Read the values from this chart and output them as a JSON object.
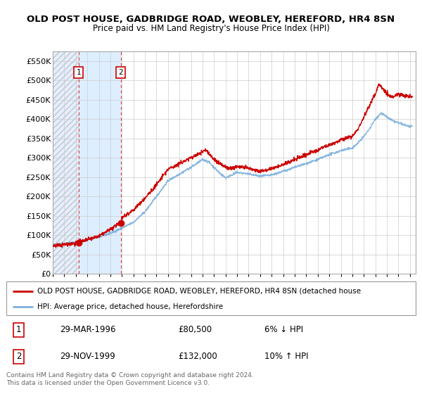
{
  "title": "OLD POST HOUSE, GADBRIDGE ROAD, WEOBLEY, HEREFORD, HR4 8SN",
  "subtitle": "Price paid vs. HM Land Registry's House Price Index (HPI)",
  "ylim": [
    0,
    575000
  ],
  "yticks": [
    0,
    50000,
    100000,
    150000,
    200000,
    250000,
    300000,
    350000,
    400000,
    450000,
    500000,
    550000
  ],
  "ytick_labels": [
    "£0",
    "£50K",
    "£100K",
    "£150K",
    "£200K",
    "£250K",
    "£300K",
    "£350K",
    "£400K",
    "£450K",
    "£500K",
    "£550K"
  ],
  "xlim_start": 1994.0,
  "xlim_end": 2025.5,
  "hpi_color": "#7ab0dc",
  "price_color": "#cc0000",
  "purchase1_date": 1996.24,
  "purchase1_price": 80500,
  "purchase2_date": 1999.91,
  "purchase2_price": 132000,
  "legend_line1": "OLD POST HOUSE, GADBRIDGE ROAD, WEOBLEY, HEREFORD, HR4 8SN (detached house",
  "legend_line2": "HPI: Average price, detached house, Herefordshire",
  "table_row1_num": "1",
  "table_row1_date": "29-MAR-1996",
  "table_row1_price": "£80,500",
  "table_row1_hpi": "6% ↓ HPI",
  "table_row2_num": "2",
  "table_row2_date": "29-NOV-1999",
  "table_row2_price": "£132,000",
  "table_row2_hpi": "10% ↑ HPI",
  "footer": "Contains HM Land Registry data © Crown copyright and database right 2024.\nThis data is licensed under the Open Government Licence v3.0.",
  "hatch_left_color": "#e8eef7",
  "between_fill_color": "#ddeeff",
  "grid_color": "#cccccc",
  "vline_color": "#dd4444"
}
